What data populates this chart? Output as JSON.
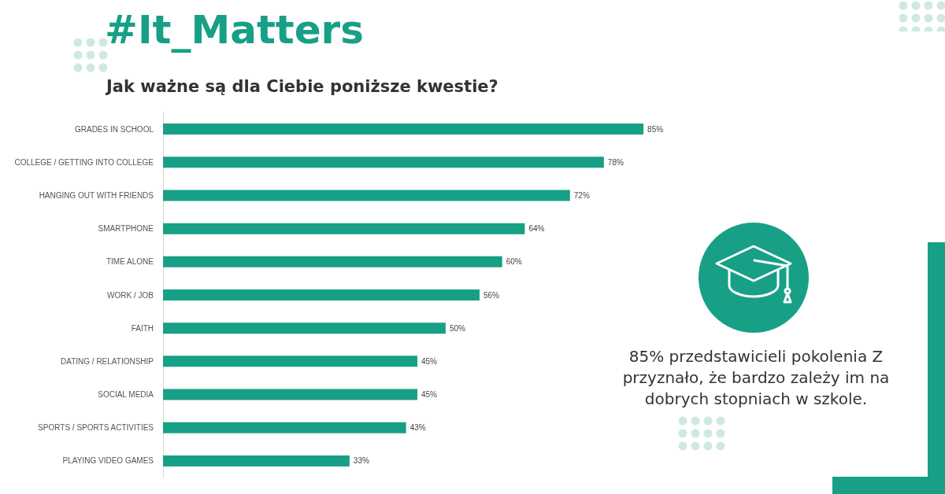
{
  "chart_data": {
    "type": "bar",
    "orientation": "horizontal",
    "title": "#It_Matters",
    "subtitle": "Jak ważne są dla Ciebie poniższe kwestie?",
    "categories": [
      "GRADES IN SCHOOL",
      "COLLEGE / GETTING INTO COLLEGE",
      "HANGING OUT WITH FRIENDS",
      "SMARTPHONE",
      "TIME ALONE",
      "WORK / JOB",
      "FAITH",
      "DATING / RELATIONSHIP",
      "SOCIAL MEDIA",
      "SPORTS / SPORTS ACTIVITIES",
      "PLAYING VIDEO GAMES"
    ],
    "values": [
      85,
      78,
      72,
      64,
      60,
      56,
      50,
      45,
      45,
      43,
      33
    ],
    "value_labels": [
      "85%",
      "78%",
      "72%",
      "64%",
      "60%",
      "56%",
      "50%",
      "45%",
      "45%",
      "43%",
      "33%"
    ],
    "color": "#17a085",
    "annotations": [
      "85% przedstawicieli pokolenia Z przyznało, że bardzo zależy im na dobrych stopniach w szkole."
    ]
  }
}
